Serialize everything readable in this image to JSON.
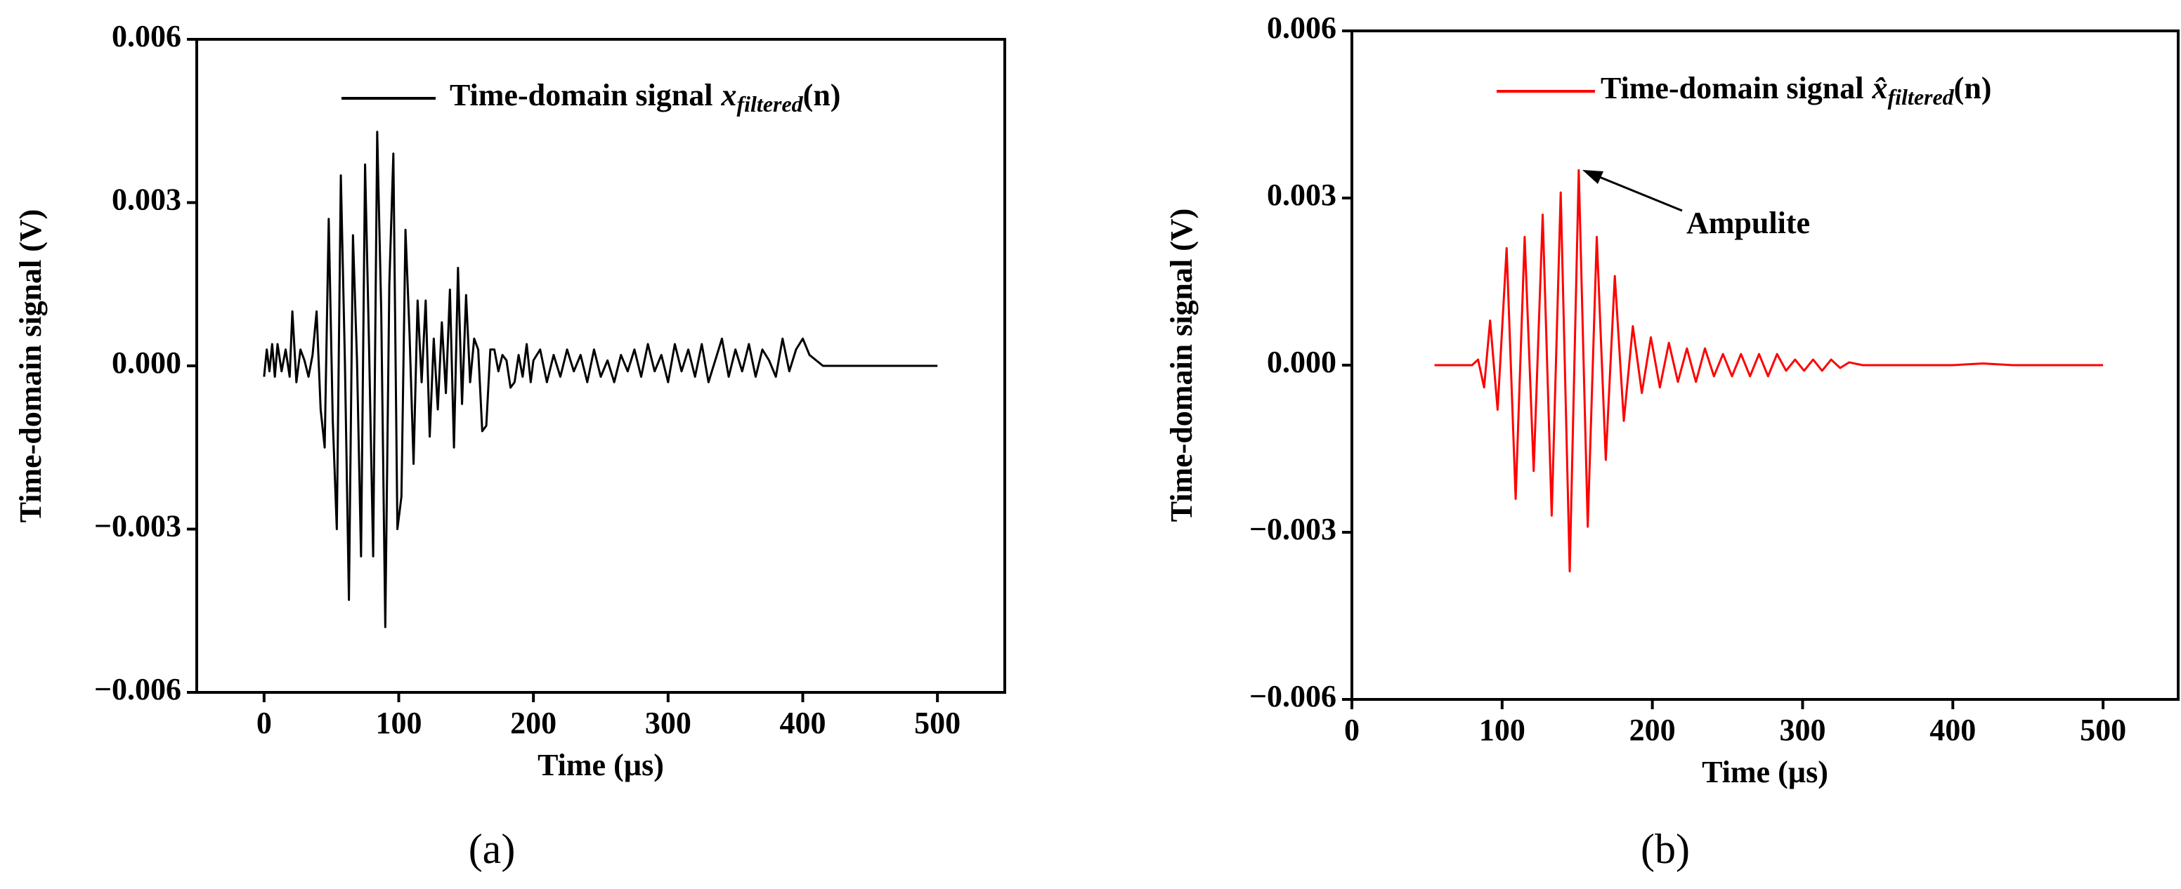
{
  "chart_data": [
    {
      "type": "line",
      "panel_label": "(a)",
      "xlabel": "Time (µs)",
      "ylabel": "Time-domain signal (V)",
      "xlim": [
        -50,
        550
      ],
      "xticks": [
        0,
        100,
        200,
        300,
        400,
        500
      ],
      "ylim": [
        -0.006,
        0.006
      ],
      "yticks": [
        {
          "value": -0.006,
          "label": "−0.006"
        },
        {
          "value": -0.003,
          "label": "−0.003"
        },
        {
          "value": 0,
          "label": "0.000"
        },
        0.003,
        0.006
      ],
      "x": [
        0,
        2,
        4,
        6,
        8,
        10,
        13,
        16,
        19,
        21,
        24,
        27,
        30,
        33,
        36,
        39,
        42,
        45,
        48,
        51,
        54,
        57,
        60,
        63,
        66,
        69,
        72,
        75,
        78,
        81,
        84,
        87,
        90,
        93,
        96,
        99,
        102,
        105,
        108,
        111,
        114,
        117,
        120,
        123,
        126,
        129,
        132,
        135,
        138,
        141,
        144,
        147,
        150,
        153,
        156,
        159,
        162,
        165,
        168,
        171,
        174,
        177,
        180,
        183,
        186,
        189,
        192,
        195,
        198,
        200,
        205,
        210,
        215,
        220,
        225,
        230,
        235,
        240,
        245,
        250,
        255,
        260,
        265,
        270,
        275,
        280,
        285,
        290,
        295,
        300,
        305,
        310,
        315,
        320,
        325,
        330,
        335,
        340,
        345,
        350,
        355,
        360,
        365,
        370,
        375,
        380,
        385,
        390,
        395,
        400,
        405,
        410,
        415,
        450,
        500
      ],
      "series": [
        {
          "name": "Time-domain signal",
          "legend_math": {
            "base": "x",
            "sub": "filtered",
            "arg": "(n)"
          },
          "color": "#000000",
          "values": [
            -0.0002,
            0.0003,
            -0.0001,
            0.0004,
            -0.0002,
            0.0004,
            -0.0001,
            0.0003,
            -0.0002,
            0.001,
            -0.0003,
            0.0003,
            0.0001,
            -0.0002,
            0.0002,
            0.001,
            -0.0008,
            -0.0015,
            0.0027,
            -0.001,
            -0.003,
            0.0035,
            0.0001,
            -0.0043,
            0.0024,
            0.0001,
            -0.0035,
            0.0037,
            0.0003,
            -0.0035,
            0.0043,
            0.001,
            -0.0048,
            0.0015,
            0.0039,
            -0.003,
            -0.0024,
            0.0025,
            0.0006,
            -0.0018,
            0.0012,
            -0.0003,
            0.0012,
            -0.0013,
            0.0005,
            -0.0008,
            0.0008,
            -0.0005,
            0.0014,
            -0.0015,
            0.0018,
            -0.0007,
            0.0013,
            -0.0003,
            0.0005,
            0.0003,
            -0.0012,
            -0.0011,
            0.0003,
            0.0003,
            -0.0001,
            0.0002,
            0.0001,
            -0.0004,
            -0.0003,
            0.0002,
            -0.0002,
            0.0004,
            -0.0003,
            0.0001,
            0.0003,
            -0.0003,
            0.0002,
            -0.0002,
            0.0003,
            -0.0001,
            0.0002,
            -0.0003,
            0.0003,
            -0.0002,
            0.0001,
            -0.0003,
            0.0002,
            -0.0001,
            0.0003,
            -0.0002,
            0.0004,
            -0.0001,
            0.0002,
            -0.0003,
            0.0004,
            -0.0001,
            0.0003,
            -0.0002,
            0.0004,
            -0.0003,
            0.0001,
            0.0005,
            -0.0002,
            0.0003,
            -0.0001,
            0.0004,
            -0.0002,
            0.0003,
            0.0001,
            -0.0002,
            0.0005,
            -0.0001,
            0.0003,
            0.0005,
            0.0002,
            0.0001,
            0,
            0,
            0
          ]
        }
      ]
    },
    {
      "type": "line",
      "panel_label": "(b)",
      "xlabel": "Time (µs)",
      "ylabel": "Time-domain signal (V)",
      "xlim": [
        0,
        550
      ],
      "xticks": [
        0,
        100,
        200,
        300,
        400,
        500
      ],
      "ylim": [
        -0.006,
        0.006
      ],
      "yticks": [
        {
          "value": -0.006,
          "label": "−0.006"
        },
        {
          "value": -0.003,
          "label": "−0.003"
        },
        {
          "value": 0,
          "label": "0.000"
        },
        0.003,
        0.006
      ],
      "annotation": "Ampulite",
      "x": [
        55,
        80,
        84,
        88,
        92,
        97,
        103,
        109,
        115,
        121,
        127,
        133,
        139,
        145,
        151,
        157,
        163,
        169,
        175,
        181,
        187,
        193,
        199,
        205,
        211,
        217,
        223,
        229,
        235,
        241,
        247,
        253,
        259,
        265,
        271,
        277,
        283,
        289,
        295,
        301,
        307,
        313,
        319,
        325,
        331,
        340,
        400,
        420,
        440,
        500
      ],
      "series": [
        {
          "name": "Time-domain signal",
          "legend_math": {
            "base": "x̂",
            "sub": "filtered",
            "arg": "(n)"
          },
          "color": "#ff0000",
          "values": [
            0,
            0,
            0.0001,
            -0.0004,
            0.0008,
            -0.0008,
            0.0021,
            -0.0024,
            0.0023,
            -0.0019,
            0.0027,
            -0.0027,
            0.0031,
            -0.0037,
            0.0035,
            -0.0029,
            0.0023,
            -0.0017,
            0.0016,
            -0.001,
            0.0007,
            -0.0005,
            0.0005,
            -0.0004,
            0.0004,
            -0.0003,
            0.0003,
            -0.0003,
            0.0003,
            -0.0002,
            0.0002,
            -0.0002,
            0.0002,
            -0.0002,
            0.0002,
            -0.0002,
            0.0002,
            -0.0001,
            0.0001,
            -0.0001,
            0.0001,
            -0.0001,
            0.0001,
            -5e-05,
            5e-05,
            0,
            0,
            3e-05,
            0,
            0
          ]
        }
      ]
    }
  ]
}
